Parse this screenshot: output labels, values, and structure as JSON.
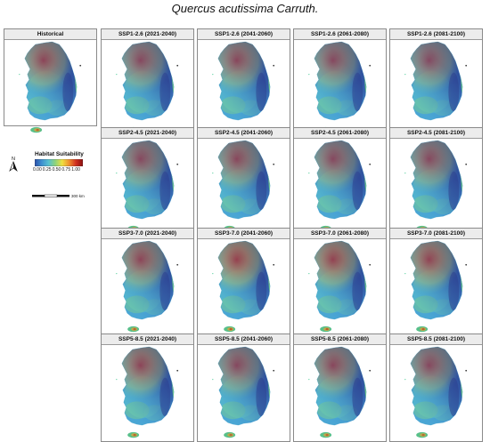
{
  "title": "Quercus acutissima Carruth.",
  "panels": [
    {
      "label": "Historical",
      "warmth": 0.55
    },
    {
      "label": "SSP1-2.6 (2021-2040)",
      "warmth": 0.5
    },
    {
      "label": "SSP1-2.6 (2041-2060)",
      "warmth": 0.52
    },
    {
      "label": "SSP1-2.6 (2061-2080)",
      "warmth": 0.5
    },
    {
      "label": "SSP1-2.6 (2081-2100)",
      "warmth": 0.48
    },
    {
      "label": "SSP2-4.5 (2021-2040)",
      "warmth": 0.5
    },
    {
      "label": "SSP2-4.5 (2041-2060)",
      "warmth": 0.52
    },
    {
      "label": "SSP2-4.5 (2061-2080)",
      "warmth": 0.5
    },
    {
      "label": "SSP2-4.5 (2081-2100)",
      "warmth": 0.5
    },
    {
      "label": "SSP3-7.0 (2021-2040)",
      "warmth": 0.55
    },
    {
      "label": "SSP3-7.0 (2041-2060)",
      "warmth": 0.62
    },
    {
      "label": "SSP3-7.0 (2061-2080)",
      "warmth": 0.6
    },
    {
      "label": "SSP3-7.0 (2081-2100)",
      "warmth": 0.58
    },
    {
      "label": "SSP5-8.5 (2021-2040)",
      "warmth": 0.55
    },
    {
      "label": "SSP5-8.5 (2041-2060)",
      "warmth": 0.5
    },
    {
      "label": "SSP5-8.5 (2061-2080)",
      "warmth": 0.52
    },
    {
      "label": "SSP5-8.5 (2081-2100)",
      "warmth": 0.5
    }
  ],
  "legend": {
    "title": "Habitat Suitability",
    "ticks": [
      "0.00",
      "0.25",
      "0.50",
      "0.75",
      "1.00"
    ],
    "colors": [
      "#2b4fa8",
      "#3d8fd0",
      "#56c0d0",
      "#8fd47a",
      "#f0e040",
      "#f09030",
      "#d03020",
      "#8a1010"
    ],
    "north_label": "N",
    "scale_label": "300 km"
  }
}
